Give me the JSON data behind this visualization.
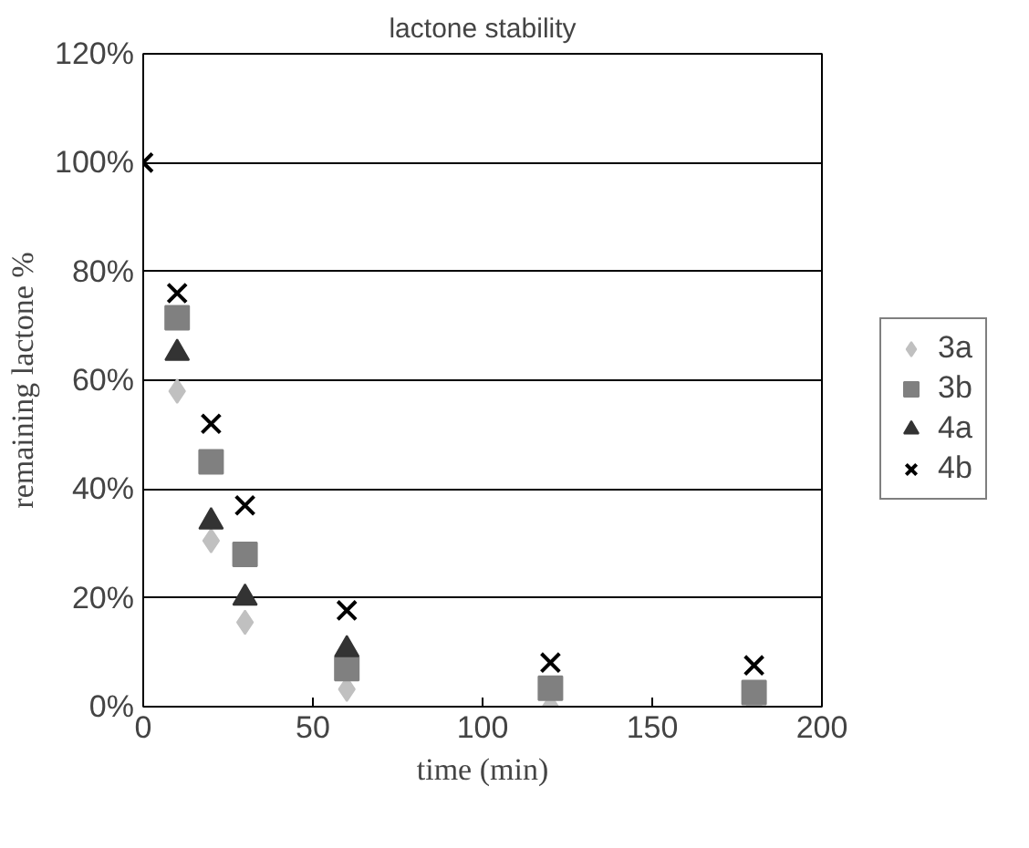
{
  "chart_data": {
    "type": "scatter",
    "title": "lactone stability",
    "xlabel": "time (min)",
    "ylabel": "remaining lactone %",
    "x": [
      0,
      10,
      20,
      30,
      60,
      120,
      180
    ],
    "series": [
      {
        "name": "3a",
        "color": "#c0c0c0",
        "marker": "diamond",
        "values": [
          null,
          58,
          30.5,
          15.5,
          3.2,
          0,
          0
        ]
      },
      {
        "name": "3b",
        "color": "#808080",
        "marker": "square",
        "values": [
          null,
          71.5,
          45,
          28,
          7,
          3.4,
          2.6
        ]
      },
      {
        "name": "4a",
        "color": "#333333",
        "marker": "triangle",
        "values": [
          null,
          65,
          34,
          20,
          10.5,
          null,
          null
        ]
      },
      {
        "name": "4b",
        "color": "#000000",
        "marker": "cross",
        "values": [
          100,
          76,
          52,
          37,
          17.7,
          8.1,
          7.6
        ]
      }
    ],
    "xlim": [
      0,
      200
    ],
    "xticks": [
      0,
      50,
      100,
      150,
      200
    ],
    "ylim": [
      0,
      120
    ],
    "yticks": [
      {
        "value": 0,
        "label": "0%"
      },
      {
        "value": 20,
        "label": "20%"
      },
      {
        "value": 40,
        "label": "40%"
      },
      {
        "value": 60,
        "label": "60%"
      },
      {
        "value": 80,
        "label": "80%"
      },
      {
        "value": 100,
        "label": "100%"
      },
      {
        "value": 120,
        "label": "120%"
      }
    ],
    "grid": "y",
    "legend": "right"
  }
}
